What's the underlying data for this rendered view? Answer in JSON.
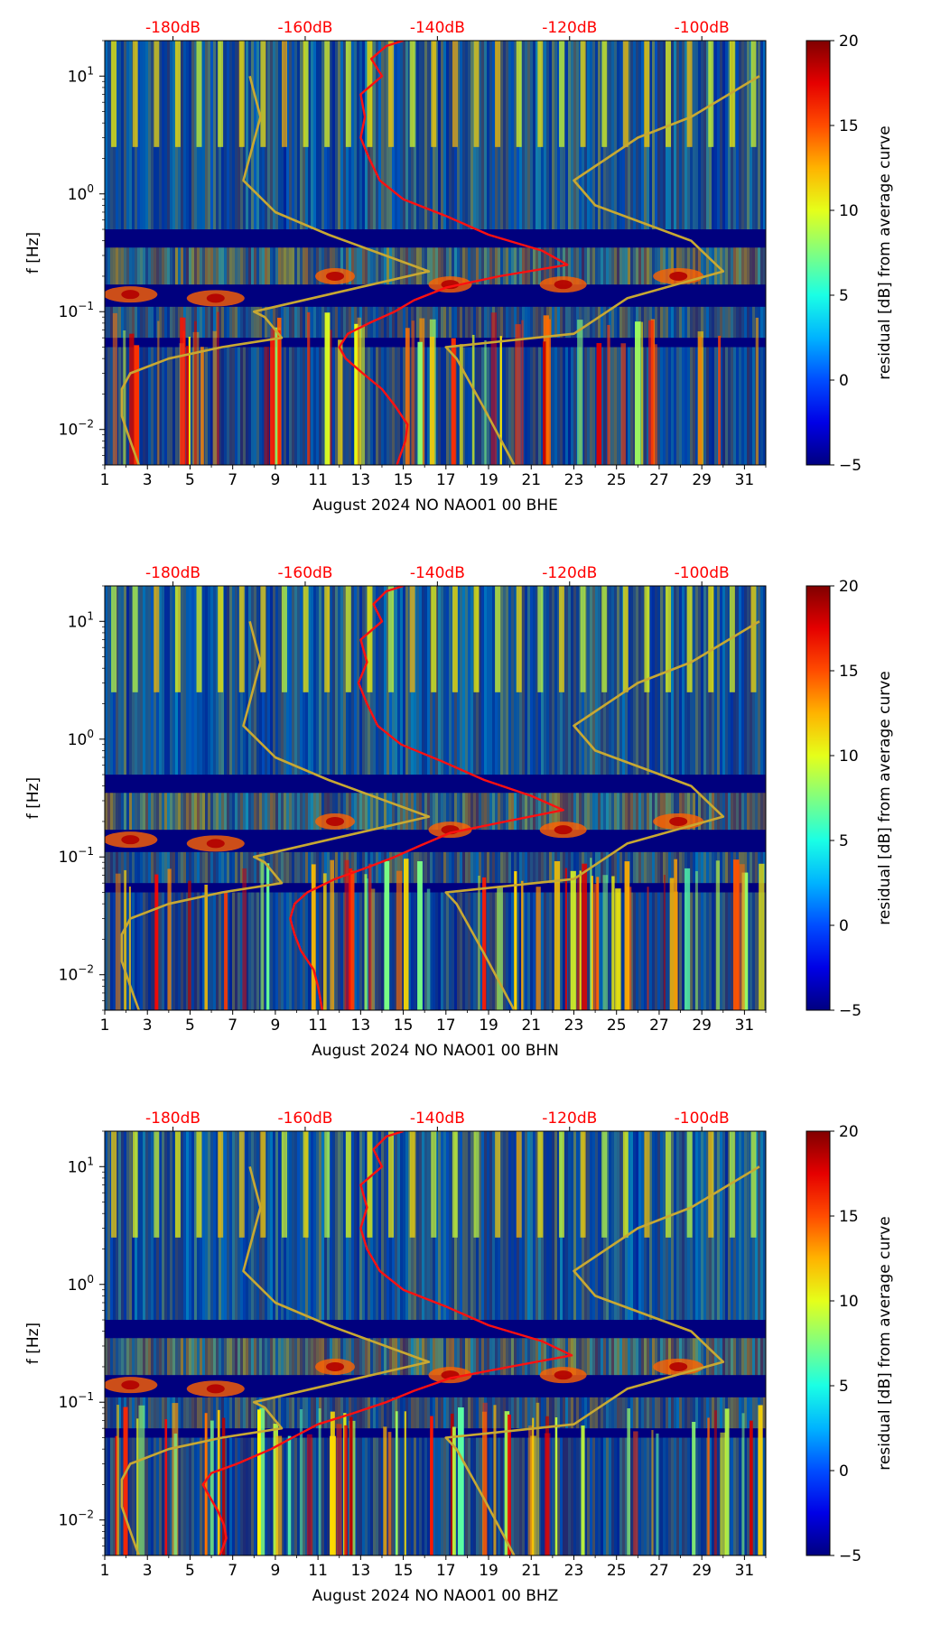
{
  "chart_data": [
    {
      "type": "heatmap",
      "title": "",
      "xlabel": "August 2024 NO NAO01 00 BHE",
      "ylabel": "f [Hz]",
      "x_ticks": [
        "1",
        "3",
        "5",
        "7",
        "9",
        "11",
        "13",
        "15",
        "17",
        "19",
        "21",
        "23",
        "25",
        "27",
        "29",
        "31"
      ],
      "xlim": [
        1,
        32
      ],
      "y_ticks": [
        {
          "base": "10",
          "exp": "1",
          "value": 10
        },
        {
          "base": "10",
          "exp": "0",
          "value": 1
        },
        {
          "base": "10",
          "exp": "−1",
          "value": 0.1
        },
        {
          "base": "10",
          "exp": "−2",
          "value": 0.01
        }
      ],
      "ylim": [
        0.005,
        20
      ],
      "top_axis_labels": [
        "-180dB",
        "-160dB",
        "-140dB",
        "-120dB",
        "-100dB"
      ],
      "top_axis_day_positions": [
        4.2,
        10.4,
        16.6,
        22.8,
        29.0
      ],
      "colorbar": {
        "label": "residual [dB] from average curve",
        "range": [
          -5,
          20
        ],
        "ticks": [
          "20",
          "15",
          "10",
          "5",
          "0",
          "−5"
        ],
        "tick_values": [
          20,
          15,
          10,
          5,
          0,
          -5
        ]
      },
      "series": [
        {
          "name": "average PSD (red)",
          "color": "#ff1010",
          "points": [
            [
              14.7,
              0.005
            ],
            [
              15.1,
              0.008
            ],
            [
              15.2,
              0.011
            ],
            [
              14.6,
              0.016
            ],
            [
              14.0,
              0.022
            ],
            [
              13.1,
              0.03
            ],
            [
              12.3,
              0.04
            ],
            [
              12.0,
              0.05
            ],
            [
              12.4,
              0.065
            ],
            [
              13.4,
              0.08
            ],
            [
              14.6,
              0.1
            ],
            [
              15.5,
              0.125
            ],
            [
              17.0,
              0.16
            ],
            [
              19.5,
              0.2
            ],
            [
              22.7,
              0.25
            ],
            [
              21.5,
              0.33
            ],
            [
              19.0,
              0.45
            ],
            [
              17.0,
              0.65
            ],
            [
              15.0,
              0.9
            ],
            [
              13.9,
              1.3
            ],
            [
              13.4,
              2.0
            ],
            [
              13.0,
              3.0
            ],
            [
              13.2,
              4.5
            ],
            [
              13.0,
              7.0
            ],
            [
              14.0,
              10.0
            ],
            [
              13.5,
              14.0
            ],
            [
              14.2,
              18.0
            ],
            [
              15.0,
              20.0
            ]
          ]
        },
        {
          "name": "noise model (olive)",
          "color": "#c8a832",
          "points": [
            [
              2.6,
              0.005
            ],
            [
              2.2,
              0.008
            ],
            [
              1.8,
              0.013
            ],
            [
              1.8,
              0.022
            ],
            [
              2.2,
              0.03
            ],
            [
              4.0,
              0.04
            ],
            [
              6.5,
              0.05
            ],
            [
              9.3,
              0.06
            ],
            [
              8.5,
              0.09
            ],
            [
              8.0,
              0.1
            ],
            [
              16.2,
              0.22
            ],
            [
              11.5,
              0.45
            ],
            [
              9.0,
              0.7
            ],
            [
              7.5,
              1.3
            ],
            [
              8.3,
              4.5
            ],
            [
              7.8,
              10.0
            ]
          ]
        },
        {
          "name": "noise model right (olive)",
          "color": "#c8a832",
          "points": [
            [
              20.2,
              0.005
            ],
            [
              18.8,
              0.015
            ],
            [
              17.5,
              0.04
            ],
            [
              17.0,
              0.05
            ],
            [
              23.0,
              0.065
            ],
            [
              25.5,
              0.13
            ],
            [
              30.0,
              0.22
            ],
            [
              28.5,
              0.4
            ],
            [
              24.0,
              0.8
            ],
            [
              23.0,
              1.3
            ],
            [
              26.0,
              3.0
            ],
            [
              28.5,
              4.5
            ],
            [
              31.7,
              10.0
            ]
          ]
        }
      ]
    },
    {
      "type": "heatmap",
      "title": "",
      "xlabel": "August 2024 NO NAO01 00 BHN",
      "ylabel": "f [Hz]",
      "x_ticks": [
        "1",
        "3",
        "5",
        "7",
        "9",
        "11",
        "13",
        "15",
        "17",
        "19",
        "21",
        "23",
        "25",
        "27",
        "29",
        "31"
      ],
      "xlim": [
        1,
        32
      ],
      "y_ticks": [
        {
          "base": "10",
          "exp": "1",
          "value": 10
        },
        {
          "base": "10",
          "exp": "0",
          "value": 1
        },
        {
          "base": "10",
          "exp": "−1",
          "value": 0.1
        },
        {
          "base": "10",
          "exp": "−2",
          "value": 0.01
        }
      ],
      "ylim": [
        0.005,
        20
      ],
      "top_axis_labels": [
        "-180dB",
        "-160dB",
        "-140dB",
        "-120dB",
        "-100dB"
      ],
      "top_axis_day_positions": [
        4.2,
        10.4,
        16.6,
        22.8,
        29.0
      ],
      "colorbar": {
        "label": "residual [dB] from average curve",
        "range": [
          -5,
          20
        ],
        "ticks": [
          "20",
          "15",
          "10",
          "5",
          "0",
          "−5"
        ],
        "tick_values": [
          20,
          15,
          10,
          5,
          0,
          -5
        ]
      },
      "series": [
        {
          "name": "average PSD (red)",
          "color": "#ff1010",
          "points": [
            [
              11.2,
              0.005
            ],
            [
              11.0,
              0.008
            ],
            [
              10.8,
              0.011
            ],
            [
              10.2,
              0.016
            ],
            [
              9.9,
              0.022
            ],
            [
              9.7,
              0.03
            ],
            [
              9.9,
              0.04
            ],
            [
              10.5,
              0.05
            ],
            [
              11.8,
              0.065
            ],
            [
              13.2,
              0.08
            ],
            [
              14.6,
              0.1
            ],
            [
              15.8,
              0.125
            ],
            [
              17.2,
              0.16
            ],
            [
              19.8,
              0.2
            ],
            [
              22.5,
              0.25
            ],
            [
              21.0,
              0.33
            ],
            [
              18.8,
              0.45
            ],
            [
              16.8,
              0.65
            ],
            [
              14.9,
              0.9
            ],
            [
              13.8,
              1.3
            ],
            [
              13.3,
              2.0
            ],
            [
              12.9,
              3.0
            ],
            [
              13.3,
              4.5
            ],
            [
              13.0,
              7.0
            ],
            [
              14.0,
              10.0
            ],
            [
              13.6,
              14.0
            ],
            [
              14.2,
              18.0
            ],
            [
              15.0,
              20.0
            ]
          ]
        },
        {
          "name": "noise model (olive)",
          "color": "#c8a832",
          "points": [
            [
              2.6,
              0.005
            ],
            [
              2.2,
              0.008
            ],
            [
              1.8,
              0.013
            ],
            [
              1.8,
              0.022
            ],
            [
              2.2,
              0.03
            ],
            [
              4.0,
              0.04
            ],
            [
              6.5,
              0.05
            ],
            [
              9.3,
              0.06
            ],
            [
              8.5,
              0.09
            ],
            [
              8.0,
              0.1
            ],
            [
              16.2,
              0.22
            ],
            [
              11.5,
              0.45
            ],
            [
              9.0,
              0.7
            ],
            [
              7.5,
              1.3
            ],
            [
              8.3,
              4.5
            ],
            [
              7.8,
              10.0
            ]
          ]
        },
        {
          "name": "noise model right (olive)",
          "color": "#c8a832",
          "points": [
            [
              20.2,
              0.005
            ],
            [
              18.8,
              0.015
            ],
            [
              17.5,
              0.04
            ],
            [
              17.0,
              0.05
            ],
            [
              23.0,
              0.065
            ],
            [
              25.5,
              0.13
            ],
            [
              30.0,
              0.22
            ],
            [
              28.5,
              0.4
            ],
            [
              24.0,
              0.8
            ],
            [
              23.0,
              1.3
            ],
            [
              26.0,
              3.0
            ],
            [
              28.5,
              4.5
            ],
            [
              31.7,
              10.0
            ]
          ]
        }
      ]
    },
    {
      "type": "heatmap",
      "title": "",
      "xlabel": "August 2024 NO NAO01 00 BHZ",
      "ylabel": "f [Hz]",
      "x_ticks": [
        "1",
        "3",
        "5",
        "7",
        "9",
        "11",
        "13",
        "15",
        "17",
        "19",
        "21",
        "23",
        "25",
        "27",
        "29",
        "31"
      ],
      "xlim": [
        1,
        32
      ],
      "y_ticks": [
        {
          "base": "10",
          "exp": "1",
          "value": 10
        },
        {
          "base": "10",
          "exp": "0",
          "value": 1
        },
        {
          "base": "10",
          "exp": "−1",
          "value": 0.1
        },
        {
          "base": "10",
          "exp": "−2",
          "value": 0.01
        }
      ],
      "ylim": [
        0.005,
        20
      ],
      "top_axis_labels": [
        "-180dB",
        "-160dB",
        "-140dB",
        "-120dB",
        "-100dB"
      ],
      "top_axis_day_positions": [
        4.2,
        10.4,
        16.6,
        22.8,
        29.0
      ],
      "colorbar": {
        "label": "residual [dB] from average curve",
        "range": [
          -5,
          20
        ],
        "ticks": [
          "20",
          "15",
          "10",
          "5",
          "0",
          "−5"
        ],
        "tick_values": [
          20,
          15,
          10,
          5,
          0,
          -5
        ]
      },
      "series": [
        {
          "name": "average PSD (red)",
          "color": "#ff1010",
          "points": [
            [
              6.4,
              0.005
            ],
            [
              6.7,
              0.007
            ],
            [
              6.6,
              0.009
            ],
            [
              6.3,
              0.012
            ],
            [
              5.9,
              0.016
            ],
            [
              5.6,
              0.02
            ],
            [
              6.0,
              0.025
            ],
            [
              7.2,
              0.03
            ],
            [
              8.8,
              0.04
            ],
            [
              9.8,
              0.05
            ],
            [
              11.0,
              0.065
            ],
            [
              12.6,
              0.08
            ],
            [
              14.2,
              0.1
            ],
            [
              15.5,
              0.125
            ],
            [
              17.2,
              0.16
            ],
            [
              20.0,
              0.2
            ],
            [
              22.9,
              0.25
            ],
            [
              21.5,
              0.33
            ],
            [
              19.0,
              0.45
            ],
            [
              17.0,
              0.65
            ],
            [
              15.0,
              0.9
            ],
            [
              13.9,
              1.3
            ],
            [
              13.3,
              2.0
            ],
            [
              13.0,
              3.0
            ],
            [
              13.3,
              4.5
            ],
            [
              13.0,
              7.0
            ],
            [
              14.0,
              10.0
            ],
            [
              13.6,
              14.0
            ],
            [
              14.2,
              18.0
            ],
            [
              15.0,
              20.0
            ]
          ]
        },
        {
          "name": "noise model (olive)",
          "color": "#c8a832",
          "points": [
            [
              2.6,
              0.005
            ],
            [
              2.2,
              0.008
            ],
            [
              1.8,
              0.013
            ],
            [
              1.8,
              0.022
            ],
            [
              2.2,
              0.03
            ],
            [
              4.0,
              0.04
            ],
            [
              6.5,
              0.05
            ],
            [
              9.3,
              0.06
            ],
            [
              8.5,
              0.09
            ],
            [
              8.0,
              0.1
            ],
            [
              16.2,
              0.22
            ],
            [
              11.5,
              0.45
            ],
            [
              9.0,
              0.7
            ],
            [
              7.5,
              1.3
            ],
            [
              8.3,
              4.5
            ],
            [
              7.8,
              10.0
            ]
          ]
        },
        {
          "name": "noise model right (olive)",
          "color": "#c8a832",
          "points": [
            [
              20.2,
              0.005
            ],
            [
              18.8,
              0.015
            ],
            [
              17.5,
              0.04
            ],
            [
              17.0,
              0.05
            ],
            [
              23.0,
              0.065
            ],
            [
              25.5,
              0.13
            ],
            [
              30.0,
              0.22
            ],
            [
              28.5,
              0.4
            ],
            [
              24.0,
              0.8
            ],
            [
              23.0,
              1.3
            ],
            [
              26.0,
              3.0
            ],
            [
              28.5,
              4.5
            ],
            [
              31.7,
              10.0
            ]
          ]
        }
      ]
    }
  ]
}
